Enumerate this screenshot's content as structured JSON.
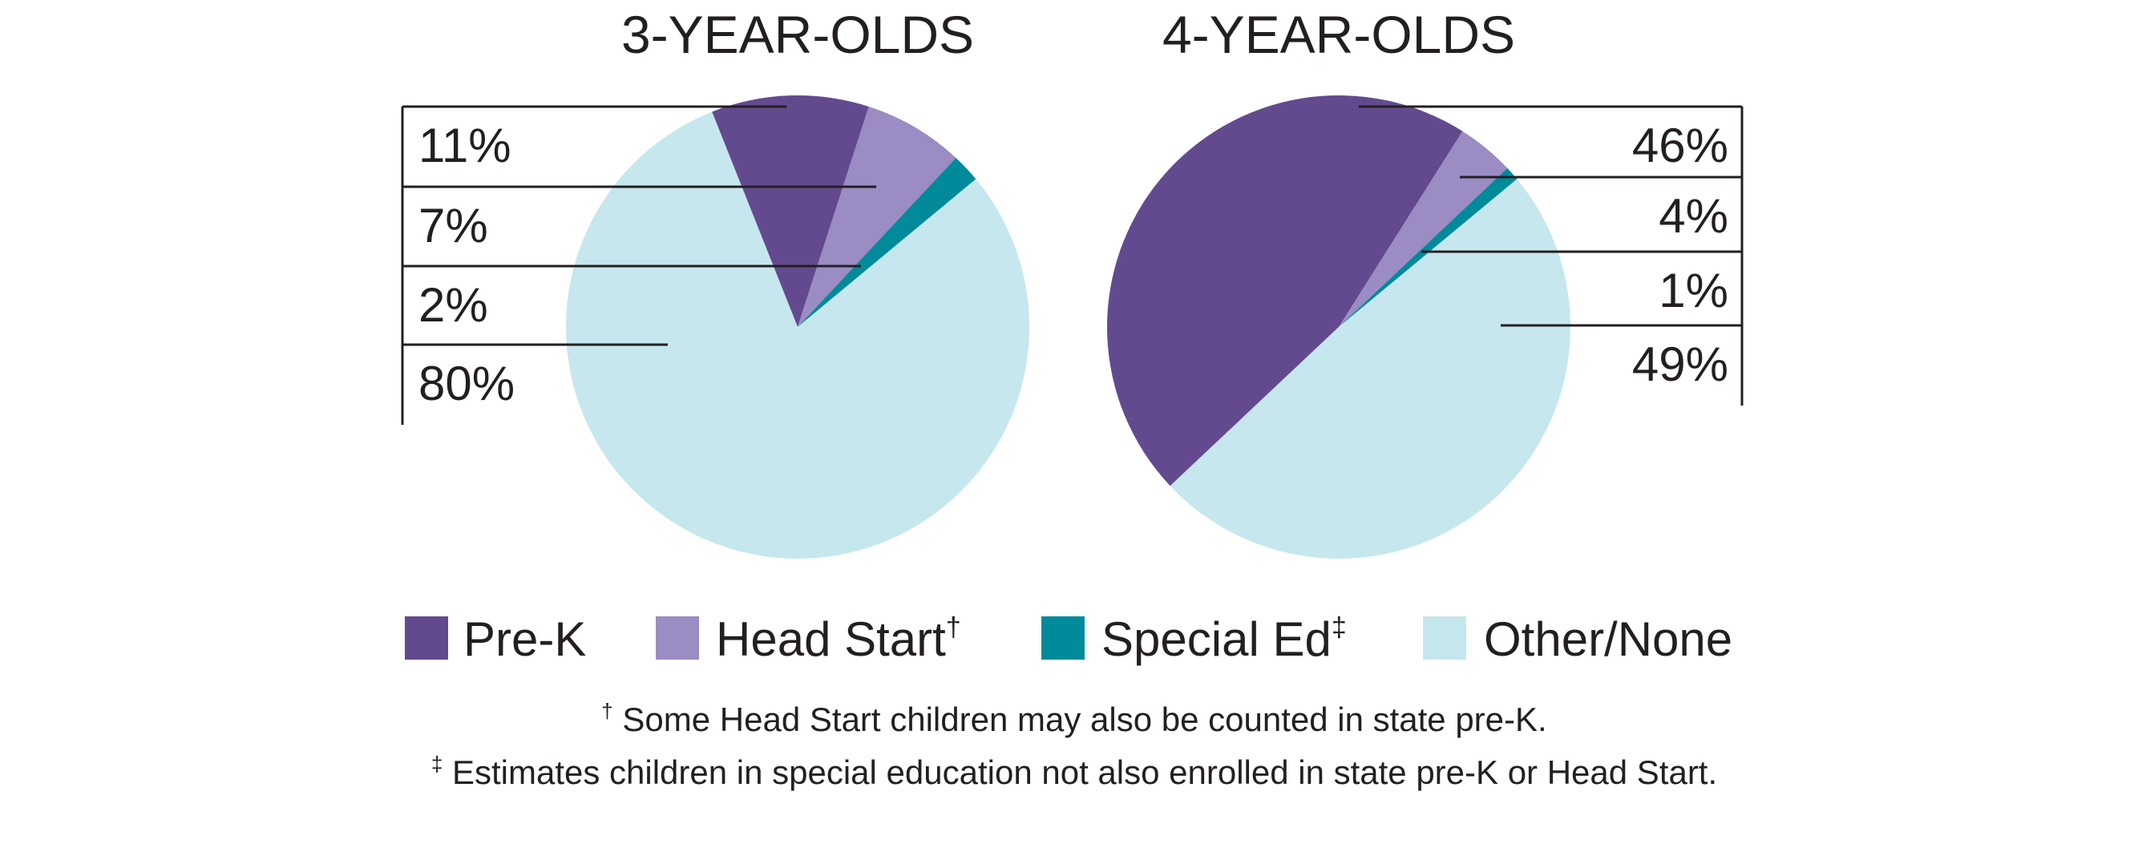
{
  "chart_data": [
    {
      "type": "pie",
      "title": "3-YEAR-OLDS",
      "categories": [
        "Pre-K",
        "Head Start",
        "Special Ed",
        "Other/None"
      ],
      "values": [
        11,
        7,
        2,
        80
      ],
      "labels": [
        "11%",
        "7%",
        "2%",
        "80%"
      ],
      "label_side": "left"
    },
    {
      "type": "pie",
      "title": "4-YEAR-OLDS",
      "categories": [
        "Pre-K",
        "Head Start",
        "Special Ed",
        "Other/None"
      ],
      "values": [
        46,
        4,
        1,
        49
      ],
      "labels": [
        "46%",
        "4%",
        "1%",
        "49%"
      ],
      "label_side": "right"
    }
  ],
  "legend": {
    "items": [
      {
        "label": "Pre-K",
        "mark": "",
        "color": "#634a8f"
      },
      {
        "label": "Head Start",
        "mark": "†",
        "color": "#9b8cc3"
      },
      {
        "label": "Special Ed",
        "mark": "‡",
        "color": "#008a9a"
      },
      {
        "label": "Other/None",
        "mark": "",
        "color": "#c6e7ee"
      }
    ],
    "placement": "bottom"
  },
  "footnotes": [
    {
      "mark": "†",
      "text": " Some Head Start children may also be counted in state pre-K."
    },
    {
      "mark": "‡",
      "text": " Estimates children in special education not also enrolled in state pre-K or Head Start."
    }
  ]
}
